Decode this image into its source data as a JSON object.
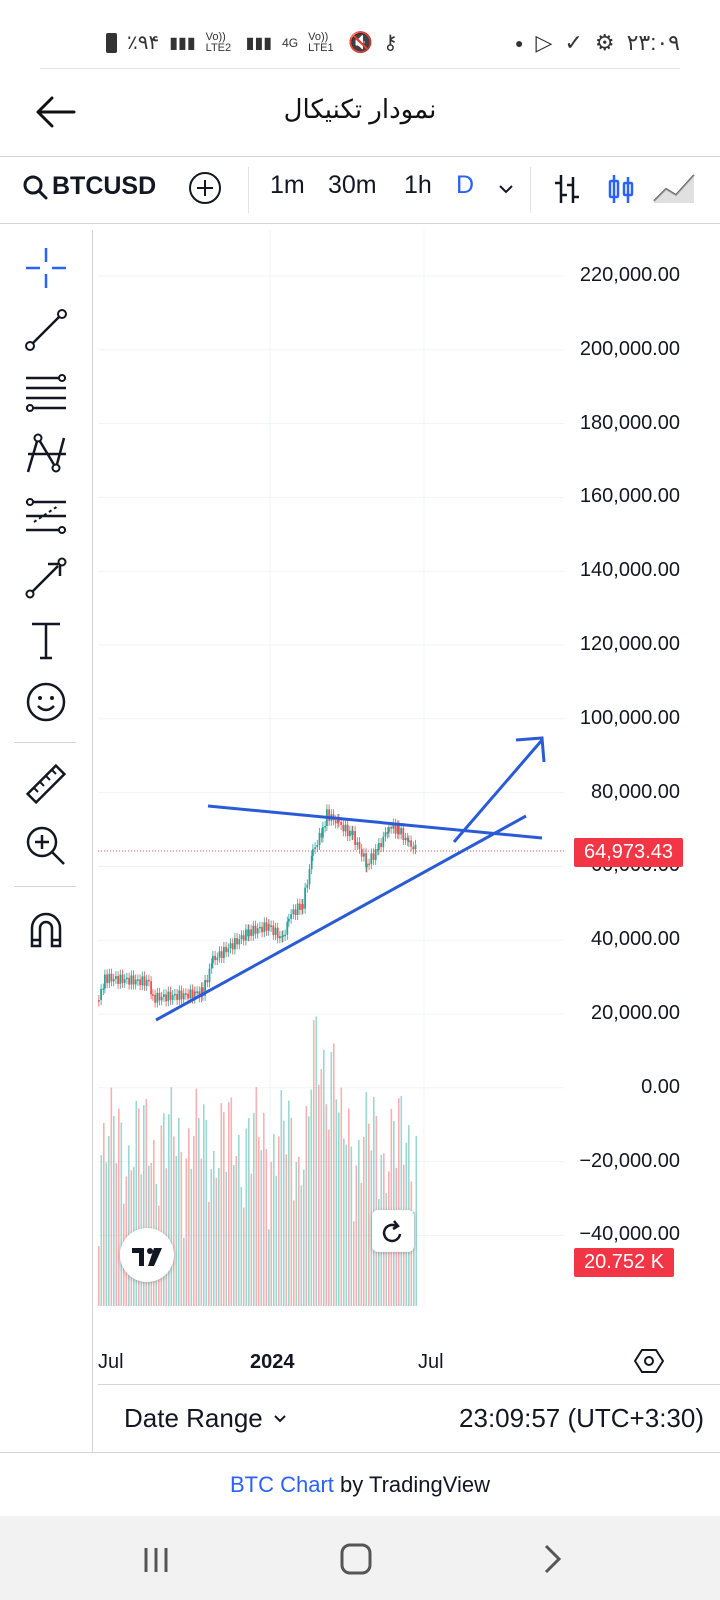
{
  "status_bar": {
    "battery": "٪۹۴",
    "net1": "Vo)) LTE2",
    "net2": "4G",
    "net3": "Vo)) LTE1",
    "time": "۲۳:۰۹"
  },
  "header": {
    "title": "نمودار تکنیکال"
  },
  "toolbar": {
    "symbol": "BTCUSD",
    "intervals": [
      "1m",
      "30m",
      "1h",
      "D"
    ],
    "active_interval": "D"
  },
  "chart": {
    "price_labels": [
      "220,000.00",
      "200,000.00",
      "180,000.00",
      "160,000.00",
      "140,000.00",
      "120,000.00",
      "100,000.00",
      "80,000.00",
      "60,000.00",
      "40,000.00",
      "20,000.00",
      "0.00",
      "−20,000.00",
      "−40,000.00"
    ],
    "last_price": "64,973.43",
    "last_volume": "20.752 K",
    "time_labels": [
      "Jul",
      "2024",
      "Jul"
    ],
    "accent": "#2962ff",
    "up_color": "#26a69a",
    "down_color": "#ef5350",
    "trend_color": "#2a5bd7"
  },
  "bottom": {
    "date_range": "Date Range",
    "clock": "23:09:57 (UTC+3:30)"
  },
  "footer": {
    "link": "BTC Chart",
    "suffix": " by TradingView"
  }
}
